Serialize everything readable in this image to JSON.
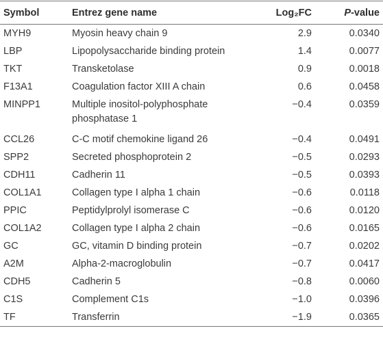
{
  "table": {
    "header": [
      "Symbol",
      "Entrez gene name",
      "Log₂FC",
      "P-value"
    ],
    "rows": [
      [
        "MYH9",
        "Myosin heavy chain 9",
        "2.9",
        "0.0340"
      ],
      [
        "LBP",
        "Lipopolysaccharide binding protein",
        "1.4",
        "0.0077"
      ],
      [
        "TKT",
        "Transketolase",
        "0.9",
        "0.0018"
      ],
      [
        "F13A1",
        "Coagulation factor XIII A chain",
        "0.6",
        "0.0458"
      ],
      [
        "MINPP1",
        "Multiple inositol-polyphosphate phosphatase 1",
        "−0.4",
        "0.0359"
      ],
      [
        "CCL26",
        "C-C motif chemokine ligand 26",
        "−0.4",
        "0.0491"
      ],
      [
        "SPP2",
        "Secreted phosphoprotein 2",
        "−0.5",
        "0.0293"
      ],
      [
        "CDH11",
        "Cadherin 11",
        "−0.5",
        "0.0393"
      ],
      [
        "COL1A1",
        "Collagen type I alpha 1 chain",
        "−0.6",
        "0.0118"
      ],
      [
        "PPIC",
        "Peptidylprolyl isomerase C",
        "−0.6",
        "0.0120"
      ],
      [
        "COL1A2",
        "Collagen type I alpha 2 chain",
        "−0.6",
        "0.0165"
      ],
      [
        "GC",
        "GC, vitamin D binding protein",
        "−0.7",
        "0.0202"
      ],
      [
        "A2M",
        "Alpha-2-macroglobulin",
        "−0.7",
        "0.0417"
      ],
      [
        "CDH5",
        "Cadherin 5",
        "−0.8",
        "0.0060"
      ],
      [
        "C1S",
        "Complement C1s",
        "−1.0",
        "0.0396"
      ],
      [
        "TF",
        "Transferrin",
        "−1.9",
        "0.0365"
      ]
    ]
  }
}
